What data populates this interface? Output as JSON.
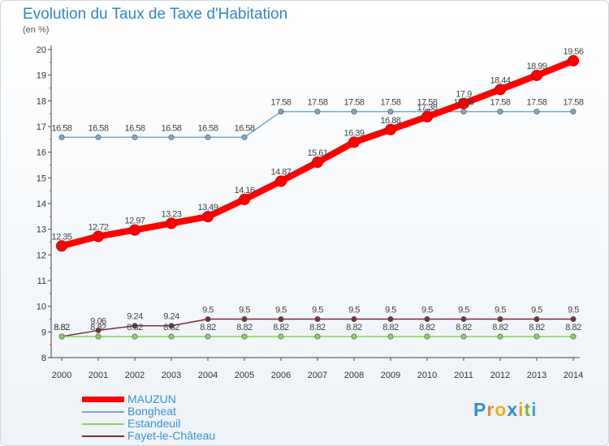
{
  "chart_data": {
    "type": "line",
    "title": "Evolution du Taux de Taxe d'Habitation",
    "subtitle": "(en %)",
    "x": [
      2000,
      2001,
      2002,
      2003,
      2004,
      2005,
      2006,
      2007,
      2008,
      2009,
      2010,
      2011,
      2012,
      2013,
      2014
    ],
    "ylim": [
      8,
      20
    ],
    "yticks": [
      8,
      9,
      10,
      11,
      12,
      13,
      14,
      15,
      16,
      17,
      18,
      19,
      20
    ],
    "grid": false,
    "legend_position": "bottom-left",
    "series": [
      {
        "name": "MAUZUN",
        "color": "#ff0000",
        "values": [
          12.35,
          12.72,
          12.97,
          13.23,
          13.49,
          14.16,
          14.87,
          15.61,
          16.39,
          16.88,
          17.38,
          17.9,
          18.44,
          18.99,
          19.56
        ],
        "labels": [
          "12.35",
          "12.72",
          "12.97",
          "13.23",
          "13.49",
          "14.16",
          "14.87",
          "15.61",
          "16.39",
          "16.88",
          "17.38",
          "17.9",
          "18.44",
          "18.99",
          "19.56"
        ]
      },
      {
        "name": "Bongheat",
        "color": "#78a8d0",
        "values": [
          16.58,
          16.58,
          16.58,
          16.58,
          16.58,
          16.58,
          17.58,
          17.58,
          17.58,
          17.58,
          17.58,
          17.58,
          17.58,
          17.58,
          17.58
        ],
        "labels": [
          "16.58",
          "16.58",
          "16.58",
          "16.58",
          "16.58",
          "16.58",
          "17.58",
          "17.58",
          "17.58",
          "17.58",
          "17.58",
          "17.58",
          "17.58",
          "17.58",
          "17.58"
        ]
      },
      {
        "name": "Estandeuil",
        "color": "#88d060",
        "values": [
          8.82,
          8.82,
          8.82,
          8.82,
          8.82,
          8.82,
          8.82,
          8.82,
          8.82,
          8.82,
          8.82,
          8.82,
          8.82,
          8.82,
          8.82
        ],
        "labels": [
          "8.82",
          "8.82",
          "8.82",
          "8.82",
          "8.82",
          "8.82",
          "8.82",
          "8.82",
          "8.82",
          "8.82",
          "8.82",
          "8.82",
          "8.82",
          "8.82",
          "8.82"
        ]
      },
      {
        "name": "Fayet-le-Château",
        "color": "#7a3038",
        "values": [
          8.82,
          9.06,
          9.24,
          9.24,
          9.5,
          9.5,
          9.5,
          9.5,
          9.5,
          9.5,
          9.5,
          9.5,
          9.5,
          9.5,
          9.5
        ],
        "labels": [
          "8.82",
          "9.06",
          "9.24",
          "9.24",
          "9.5",
          "9.5",
          "9.5",
          "9.5",
          "9.5",
          "9.5",
          "9.5",
          "9.5",
          "9.5",
          "9.5",
          "9.5"
        ]
      }
    ]
  },
  "brand": {
    "letters": [
      "P",
      "r",
      "o",
      "x",
      "i",
      "t",
      "i"
    ],
    "colors": [
      "#2a8fd6",
      "#f08a1c",
      "#f0b01c",
      "#2a8fd6",
      "#e8a020",
      "#7cb342",
      "#4ca0e0"
    ]
  }
}
